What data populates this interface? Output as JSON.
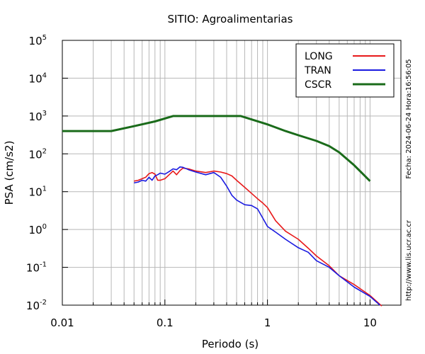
{
  "chart_data": {
    "type": "line",
    "title": "SITIO: Agroalimentarias",
    "xlabel": "Periodo (s)",
    "ylabel": "PSA (cm/s2)",
    "x_scale": "log",
    "y_scale": "log",
    "xlim": [
      0.01,
      20
    ],
    "ylim": [
      0.01,
      100000
    ],
    "grid": true,
    "legend_position": "top-right",
    "x_ticks": [
      {
        "value": 0.01,
        "label": "0.01"
      },
      {
        "value": 0.1,
        "label": "0.1"
      },
      {
        "value": 1,
        "label": "1"
      },
      {
        "value": 10,
        "label": "10"
      }
    ],
    "y_ticks": [
      {
        "value": 0.01,
        "base": "10",
        "exp": "-2"
      },
      {
        "value": 0.1,
        "base": "10",
        "exp": "-1"
      },
      {
        "value": 1,
        "base": "10",
        "exp": "0"
      },
      {
        "value": 10,
        "base": "10",
        "exp": "1"
      },
      {
        "value": 100,
        "base": "10",
        "exp": "2"
      },
      {
        "value": 1000,
        "base": "10",
        "exp": "3"
      },
      {
        "value": 10000,
        "base": "10",
        "exp": "4"
      },
      {
        "value": 100000,
        "base": "10",
        "exp": "5"
      }
    ],
    "series": [
      {
        "name": "LONG",
        "color": "#e8191a",
        "x": [
          0.05,
          0.055,
          0.06,
          0.065,
          0.07,
          0.075,
          0.08,
          0.085,
          0.09,
          0.1,
          0.11,
          0.12,
          0.13,
          0.14,
          0.15,
          0.17,
          0.2,
          0.25,
          0.3,
          0.35,
          0.4,
          0.45,
          0.5,
          0.6,
          0.7,
          0.8,
          0.9,
          1.0,
          1.2,
          1.5,
          2.0,
          2.5,
          3.0,
          4.0,
          5.0,
          7.0,
          10.0,
          13.0
        ],
        "y": [
          19,
          20,
          22,
          24,
          30,
          32,
          29,
          20,
          20,
          22,
          28,
          35,
          28,
          36,
          42,
          40,
          35,
          32,
          35,
          33,
          30,
          26,
          20,
          13,
          9,
          6.5,
          5,
          3.8,
          1.7,
          0.9,
          0.55,
          0.32,
          0.2,
          0.11,
          0.06,
          0.035,
          0.018,
          0.0095
        ]
      },
      {
        "name": "TRAN",
        "color": "#1a1ae0",
        "x": [
          0.05,
          0.055,
          0.06,
          0.065,
          0.07,
          0.075,
          0.08,
          0.085,
          0.09,
          0.1,
          0.11,
          0.12,
          0.13,
          0.14,
          0.15,
          0.17,
          0.2,
          0.25,
          0.3,
          0.35,
          0.4,
          0.45,
          0.5,
          0.6,
          0.7,
          0.8,
          0.9,
          1.0,
          1.2,
          1.5,
          2.0,
          2.5,
          3.0,
          4.0,
          5.0,
          7.0,
          10.0,
          12.5
        ],
        "y": [
          17,
          18,
          20,
          19,
          24,
          20,
          26,
          28,
          31,
          29,
          34,
          40,
          38,
          45,
          44,
          38,
          33,
          28,
          32,
          24,
          14,
          8,
          6,
          4.5,
          4.3,
          3.5,
          2.0,
          1.2,
          0.85,
          0.55,
          0.33,
          0.25,
          0.15,
          0.1,
          0.06,
          0.03,
          0.017,
          0.01
        ]
      },
      {
        "name": "CSCR",
        "color": "#1a6b1a",
        "x": [
          0.01,
          0.03,
          0.05,
          0.08,
          0.12,
          0.55,
          1.0,
          1.5,
          2.0,
          3.0,
          4.0,
          5.0,
          7.0,
          10.0
        ],
        "y": [
          400,
          400,
          540,
          720,
          1000,
          1000,
          600,
          400,
          310,
          220,
          160,
          110,
          50,
          19
        ]
      }
    ],
    "annotations": {
      "date_stamp": "Fecha: 2024-06-24 Hora:16:56:05",
      "url": "http://www.lis.ucr.ac.cr"
    }
  }
}
